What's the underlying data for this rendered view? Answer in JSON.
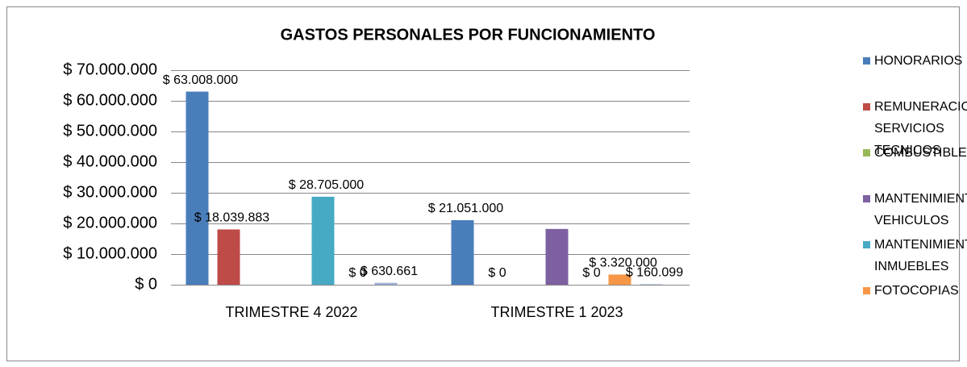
{
  "chart_data": {
    "type": "bar",
    "title": "GASTOS PERSONALES POR FUNCIONAMIENTO",
    "categories": [
      "TRIMESTRE 4 2022",
      "TRIMESTRE 1 2023"
    ],
    "series": [
      {
        "name": "HONORARIOS",
        "color": "#4a7ebb",
        "values": [
          63008000,
          21051000
        ],
        "value_labels": [
          "$ 63.008.000",
          "$ 21.051.000"
        ]
      },
      {
        "name": "REMUNERACION SERVICIOS TECNICOS",
        "color": "#be4b48",
        "values": [
          18039883,
          0
        ],
        "value_labels": [
          "$ 18.039.883",
          "$ 0"
        ]
      },
      {
        "name": "COMBUSTIBLE",
        "color": "#98b954",
        "values": [
          null,
          null
        ],
        "value_labels": [
          null,
          null
        ]
      },
      {
        "name": "MANTENIMIENTO VEHICULOS",
        "color": "#7d60a0",
        "values": [
          null,
          18200000
        ],
        "value_labels": [
          null,
          null
        ]
      },
      {
        "name": "MANTENIMIENTO INMUEBLES",
        "color": "#46aac5",
        "values": [
          28705000,
          0
        ],
        "value_labels": [
          "$ 28.705.000",
          "$ 0"
        ]
      },
      {
        "name": "FOTOCOPIAS",
        "color": "#f79646",
        "values": [
          0,
          3320000
        ],
        "value_labels": [
          "$ 0",
          "$ 3.320.000"
        ]
      },
      {
        "color": "#9cb0d6",
        "values": [
          630661,
          160099
        ],
        "value_labels": [
          "$ 630.661",
          "$ 160.099"
        ]
      }
    ],
    "ylim": [
      0,
      70000000
    ],
    "yticks": [
      {
        "value": 0,
        "label": "$ 0"
      },
      {
        "value": 10000000,
        "label": "$ 10.000.000"
      },
      {
        "value": 20000000,
        "label": "$ 20.000.000"
      },
      {
        "value": 30000000,
        "label": "$ 30.000.000"
      },
      {
        "value": 40000000,
        "label": "$ 40.000.000"
      },
      {
        "value": 50000000,
        "label": "$ 50.000.000"
      },
      {
        "value": 60000000,
        "label": "$ 60.000.000"
      },
      {
        "value": 70000000,
        "label": "$ 70.000.000"
      }
    ],
    "grid": true,
    "legend": "right"
  }
}
